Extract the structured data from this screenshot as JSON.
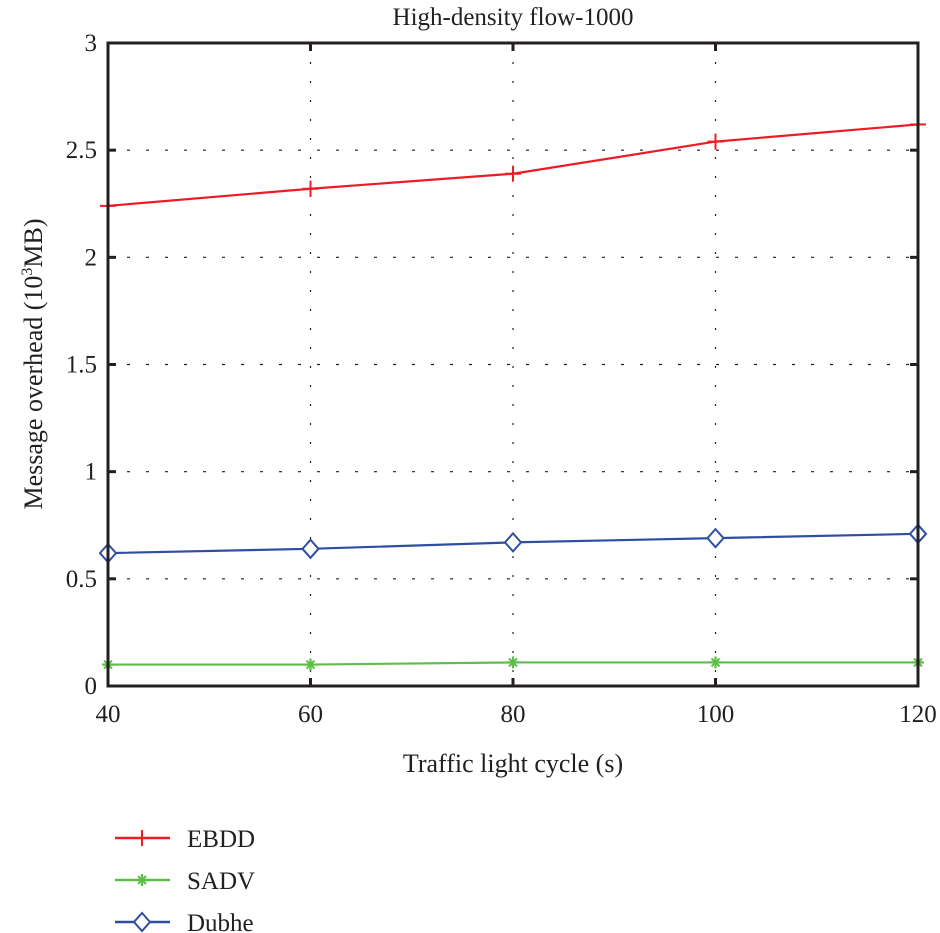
{
  "chart_data": {
    "type": "line",
    "title": "High-density flow-1000",
    "xlabel": "Traffic light cycle (s)",
    "ylabel_prefix": "Message overhead (10",
    "ylabel_sup": "3",
    "ylabel_suffix": "MB)",
    "x": [
      40,
      60,
      80,
      100,
      120
    ],
    "xlim": [
      40,
      120
    ],
    "ylim": [
      0,
      3
    ],
    "xticks": [
      "40",
      "60",
      "80",
      "100",
      "120"
    ],
    "yticks": [
      "0",
      "0.5",
      "1",
      "1.5",
      "2",
      "2.5",
      "3"
    ],
    "grid": true,
    "legend_position": "below-left",
    "series": [
      {
        "name": "EBDD",
        "color": "#ed1c24",
        "marker": "plus",
        "values": [
          2.24,
          2.32,
          2.39,
          2.54,
          2.62
        ]
      },
      {
        "name": "SADV",
        "color": "#5cbf48",
        "marker": "asterisk",
        "values": [
          0.1,
          0.1,
          0.11,
          0.11,
          0.11
        ]
      },
      {
        "name": "Dubhe",
        "color": "#2e4ea4",
        "marker": "diamond",
        "values": [
          0.62,
          0.64,
          0.67,
          0.69,
          0.71
        ]
      }
    ]
  }
}
